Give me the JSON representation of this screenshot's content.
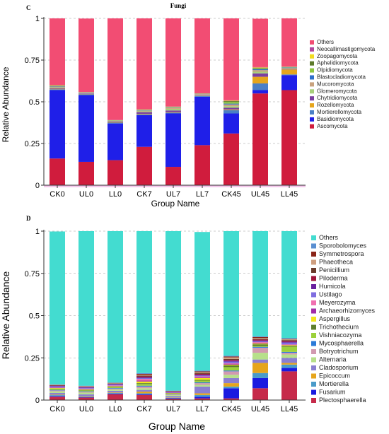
{
  "chart_data": [
    {
      "type": "bar",
      "stacked": true,
      "panel": "C",
      "title": "Fungi",
      "xlabel": "Group Name",
      "ylabel": "Relative Abundance",
      "ylim": [
        0,
        1
      ],
      "yticks": [
        "0",
        "0.25",
        "0.5",
        "0.75",
        "1"
      ],
      "grid": "dashed horizontal",
      "legend_position": "right",
      "categories": [
        "CK0",
        "UL0",
        "LL0",
        "CK7",
        "UL7",
        "LL7",
        "CK45",
        "UL45",
        "LL45"
      ],
      "series": [
        {
          "name": "Ascomycota",
          "color": "#d01c3d",
          "values": [
            0.16,
            0.14,
            0.15,
            0.23,
            0.11,
            0.24,
            0.31,
            0.55,
            0.57
          ]
        },
        {
          "name": "Basidiomycota",
          "color": "#1f1fe8",
          "values": [
            0.41,
            0.4,
            0.22,
            0.19,
            0.32,
            0.29,
            0.12,
            0.02,
            0.09
          ]
        },
        {
          "name": "Mortierellomycota",
          "color": "#4a7fc6",
          "values": [
            0.005,
            0.005,
            0.005,
            0.005,
            0.005,
            0.005,
            0.02,
            0.04,
            0.004
          ]
        },
        {
          "name": "Rozellomycota",
          "color": "#e6a51c",
          "values": [
            0.003,
            0.002,
            0.002,
            0.003,
            0.003,
            0.002,
            0.004,
            0.04,
            0.03
          ]
        },
        {
          "name": "Chytridiomycota",
          "color": "#7b3fa0",
          "values": [
            0.005,
            0.003,
            0.004,
            0.01,
            0.01,
            0.003,
            0.01,
            0.02,
            0.004
          ]
        },
        {
          "name": "Glomeromycota",
          "color": "#a8cf7a",
          "values": [
            0.005,
            0.002,
            0.003,
            0.005,
            0.01,
            0.003,
            0.01,
            0.01,
            0.003
          ]
        },
        {
          "name": "Mucoromycota",
          "color": "#c9a27e",
          "values": [
            0.003,
            0.002,
            0.002,
            0.003,
            0.005,
            0.003,
            0.01,
            0.01,
            0.003
          ]
        },
        {
          "name": "Blastocladiomycota",
          "color": "#2e6fcc",
          "values": [
            0.002,
            0.001,
            0.001,
            0.002,
            0.002,
            0.001,
            0.005,
            0.005,
            0.002
          ]
        },
        {
          "name": "Olpidiomycota",
          "color": "#8dc63f",
          "values": [
            0.002,
            0.001,
            0.001,
            0.002,
            0.002,
            0.001,
            0.01,
            0.005,
            0.002
          ]
        },
        {
          "name": "Aphelidiomycota",
          "color": "#5d7a2b",
          "values": [
            0.002,
            0.001,
            0.001,
            0.002,
            0.002,
            0.001,
            0.005,
            0.003,
            0.001
          ]
        },
        {
          "name": "Zoopagomycota",
          "color": "#f2dc21",
          "values": [
            0.002,
            0.001,
            0.001,
            0.002,
            0.002,
            0.001,
            0.003,
            0.003,
            0.001
          ]
        },
        {
          "name": "Neocallimastigomycota",
          "color": "#b0479e",
          "values": [
            0.001,
            0.001,
            0.001,
            0.001,
            0.001,
            0.001,
            0.002,
            0.002,
            0.001
          ]
        },
        {
          "name": "Others",
          "color": "#f24d73",
          "values": [
            0.41,
            0.44,
            0.61,
            0.56,
            0.54,
            0.46,
            0.5,
            0.29,
            0.29
          ]
        }
      ]
    },
    {
      "type": "bar",
      "stacked": true,
      "panel": "D",
      "title": "",
      "xlabel": "Group Name",
      "ylabel": "Relative Abundance",
      "ylim": [
        0,
        1
      ],
      "yticks": [
        "0",
        "0.25",
        "0.5",
        "0.75",
        "1"
      ],
      "grid": "dashed horizontal",
      "legend_position": "right",
      "categories": [
        "CK0",
        "UL0",
        "LL0",
        "CK7",
        "UL7",
        "LL7",
        "CK45",
        "UL45",
        "LL45"
      ],
      "series": [
        {
          "name": "Plectosphaerella",
          "color": "#c62a4a",
          "values": [
            0.02,
            0.015,
            0.035,
            0.03,
            0.008,
            0.01,
            0.01,
            0.07,
            0.17
          ]
        },
        {
          "name": "Fusarium",
          "color": "#1a1ae0",
          "values": [
            0.004,
            0.002,
            0.003,
            0.005,
            0.003,
            0.01,
            0.06,
            0.06,
            0.02
          ]
        },
        {
          "name": "Mortierella",
          "color": "#4a9bc9",
          "values": [
            0.005,
            0.004,
            0.004,
            0.005,
            0.003,
            0.01,
            0.01,
            0.03,
            0.02
          ]
        },
        {
          "name": "Epicoccum",
          "color": "#e6a51c",
          "values": [
            0.003,
            0.003,
            0.003,
            0.01,
            0.002,
            0.01,
            0.02,
            0.06,
            0.01
          ]
        },
        {
          "name": "Cladosporium",
          "color": "#8a7fd1",
          "values": [
            0.01,
            0.01,
            0.01,
            0.01,
            0.008,
            0.04,
            0.03,
            0.02,
            0.03
          ]
        },
        {
          "name": "Alternaria",
          "color": "#b7e08a",
          "values": [
            0.01,
            0.01,
            0.008,
            0.01,
            0.005,
            0.01,
            0.02,
            0.04,
            0.02
          ]
        },
        {
          "name": "Botryotrichum",
          "color": "#d29ab0",
          "values": [
            0.005,
            0.005,
            0.005,
            0.01,
            0.004,
            0.01,
            0.02,
            0.03,
            0.01
          ]
        },
        {
          "name": "Mycosphaerella",
          "color": "#2b7bd8",
          "values": [
            0.003,
            0.003,
            0.003,
            0.005,
            0.002,
            0.005,
            0.005,
            0.005,
            0.005
          ]
        },
        {
          "name": "Vishniacozyma",
          "color": "#9cd13a",
          "values": [
            0.005,
            0.005,
            0.005,
            0.01,
            0.003,
            0.01,
            0.02,
            0.005,
            0.03
          ]
        },
        {
          "name": "Trichothecium",
          "color": "#5e7f2c",
          "values": [
            0.003,
            0.003,
            0.003,
            0.005,
            0.002,
            0.005,
            0.01,
            0.01,
            0.005
          ]
        },
        {
          "name": "Aspergillus",
          "color": "#f2e61c",
          "values": [
            0.003,
            0.003,
            0.003,
            0.01,
            0.002,
            0.01,
            0.005,
            0.005,
            0.005
          ]
        },
        {
          "name": "Archaeorhizomyces",
          "color": "#a12ba6",
          "values": [
            0.003,
            0.003,
            0.003,
            0.005,
            0.002,
            0.005,
            0.005,
            0.005,
            0.003
          ]
        },
        {
          "name": "Meyerozyma",
          "color": "#f06fb0",
          "values": [
            0.002,
            0.002,
            0.002,
            0.01,
            0.001,
            0.005,
            0.003,
            0.003,
            0.002
          ]
        },
        {
          "name": "Ustilago",
          "color": "#7f6ee0",
          "values": [
            0.005,
            0.005,
            0.005,
            0.005,
            0.003,
            0.005,
            0.01,
            0.005,
            0.01
          ]
        },
        {
          "name": "Humicola",
          "color": "#6a1f9e",
          "values": [
            0.003,
            0.003,
            0.003,
            0.005,
            0.002,
            0.005,
            0.005,
            0.005,
            0.005
          ]
        },
        {
          "name": "Piloderma",
          "color": "#a0143a",
          "values": [
            0.002,
            0.002,
            0.002,
            0.005,
            0.002,
            0.005,
            0.005,
            0.005,
            0.005
          ]
        },
        {
          "name": "Penicillium",
          "color": "#6a3a2a",
          "values": [
            0.002,
            0.002,
            0.002,
            0.005,
            0.001,
            0.005,
            0.005,
            0.005,
            0.005
          ]
        },
        {
          "name": "Phaeotheca",
          "color": "#cf9f7f",
          "values": [
            0.002,
            0.002,
            0.002,
            0.005,
            0.001,
            0.005,
            0.01,
            0.005,
            0.005
          ]
        },
        {
          "name": "Symmetrospora",
          "color": "#8a2418",
          "values": [
            0.001,
            0.001,
            0.001,
            0.005,
            0.001,
            0.005,
            0.005,
            0.005,
            0.002
          ]
        },
        {
          "name": "Sporobolomyces",
          "color": "#5a8fd1",
          "values": [
            0.002,
            0.002,
            0.002,
            0.005,
            0.001,
            0.005,
            0.005,
            0.005,
            0.005
          ]
        },
        {
          "name": "Others",
          "color": "#43dcd0",
          "values": [
            0.905,
            0.915,
            0.896,
            0.845,
            0.944,
            0.82,
            0.745,
            0.64,
            0.665
          ]
        }
      ]
    }
  ]
}
